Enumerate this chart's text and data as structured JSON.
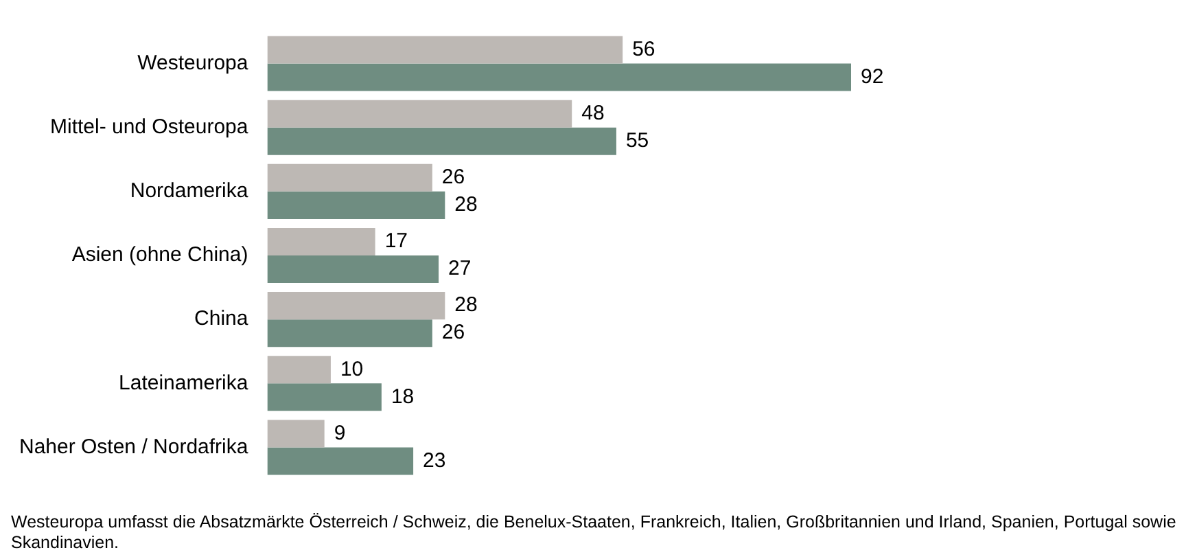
{
  "chart_data": {
    "type": "bar",
    "orientation": "horizontal",
    "categories": [
      "Westeuropa",
      "Mittel- und Osteuropa",
      "Nordamerika",
      "Asien (ohne China)",
      "China",
      "Lateinamerika",
      "Naher Osten / Nordafrika"
    ],
    "series": [
      {
        "color": "#bdb8b4",
        "values": [
          56,
          48,
          26,
          17,
          28,
          10,
          9
        ]
      },
      {
        "color": "#6f8d81",
        "values": [
          92,
          55,
          28,
          27,
          26,
          18,
          23
        ]
      }
    ],
    "data_labels": true,
    "grid": false,
    "legend": false,
    "annotations": [
      "Westeuropa umfasst die Absatzmärkte Österreich / Schweiz, die Benelux-Staaten, Frankreich, Italien, Großbritannien und Irland, Spanien, Portugal sowie Skandinavien."
    ]
  }
}
